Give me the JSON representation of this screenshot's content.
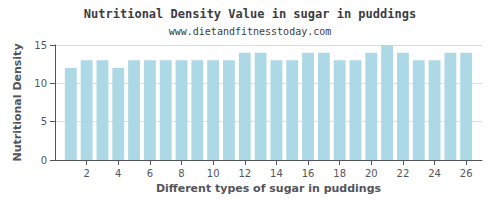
{
  "chart_data": {
    "type": "bar",
    "title": "Nutritional Density Value in sugar in puddings",
    "subtitle": "www.dietandfitnesstoday.com",
    "xlabel": "Different types of sugar in puddings",
    "ylabel": "Nutritional Density",
    "x": [
      1,
      2,
      3,
      4,
      5,
      6,
      7,
      8,
      9,
      10,
      11,
      12,
      13,
      14,
      15,
      16,
      17,
      18,
      19,
      20,
      21,
      22,
      23,
      24,
      25,
      26
    ],
    "values": [
      12.0,
      13.0,
      13.0,
      12.0,
      13.0,
      13.0,
      13.0,
      13.0,
      13.0,
      13.0,
      13.0,
      14.0,
      14.0,
      13.0,
      13.0,
      14.0,
      14.0,
      13.0,
      13.0,
      14.0,
      15.0,
      14.0,
      13.0,
      13.0,
      14.0,
      14.0
    ],
    "color": "#add8e6",
    "xlim": [
      0,
      27
    ],
    "xticks": [
      2,
      4,
      6,
      8,
      10,
      12,
      14,
      16,
      18,
      20,
      22,
      24,
      26
    ],
    "ylim": [
      0,
      15
    ],
    "yticks": [
      0,
      5,
      10,
      15
    ],
    "grid": true
  }
}
